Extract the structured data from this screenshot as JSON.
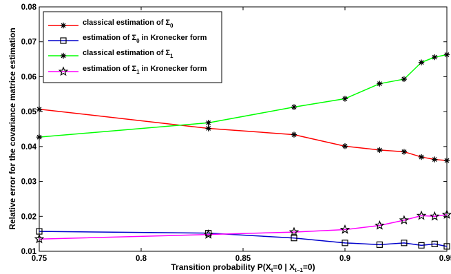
{
  "chart_data": {
    "type": "line",
    "title": "",
    "xlabel": "Transition probability P(X_t=0 | X_{t-1}=0)",
    "xlabel_parts": {
      "prefix": "Transition probability P(X",
      "sub1": "t",
      "mid": "=0 | X",
      "sub2": "t−1",
      "suffix": "=0)"
    },
    "ylabel": "Relative error for the covariance matrice estimation",
    "xlim": [
      0.75,
      0.95
    ],
    "ylim": [
      0.01,
      0.08
    ],
    "x_ticks": [
      "0.75",
      "0.8",
      "0.85",
      "0.9",
      "0.95"
    ],
    "y_ticks": [
      "0.01",
      "0.02",
      "0.03",
      "0.04",
      "0.05",
      "0.06",
      "0.07",
      "0.08"
    ],
    "grid": false,
    "legend_position": "top-left",
    "x": [
      0.75,
      0.833,
      0.875,
      0.9,
      0.917,
      0.929,
      0.9375,
      0.944,
      0.95
    ],
    "series": [
      {
        "name": "classical estimation of Σ₀",
        "legend_main": "classical estimation of Σ",
        "legend_sub": "0",
        "legend_after": "",
        "color": "#ff0000",
        "marker": "asterisk",
        "values": [
          0.0507,
          0.0452,
          0.0434,
          0.0401,
          0.039,
          0.0385,
          0.037,
          0.0363,
          0.036
        ]
      },
      {
        "name": "estimation of Σ₀ in Kronecker form",
        "legend_main": "estimation of Σ",
        "legend_sub": "0",
        "legend_after": " in Kronecker form",
        "color": "#0000cc",
        "marker": "square",
        "values": [
          0.0157,
          0.0152,
          0.0138,
          0.0124,
          0.0119,
          0.0124,
          0.0117,
          0.0121,
          0.0114
        ]
      },
      {
        "name": "classical estimation of Σ₁",
        "legend_main": "classical estimation of Σ",
        "legend_sub": "1",
        "legend_after": "",
        "color": "#00ff00",
        "marker": "asterisk",
        "values": [
          0.0427,
          0.0468,
          0.0513,
          0.0537,
          0.058,
          0.0593,
          0.0641,
          0.0656,
          0.0663
        ]
      },
      {
        "name": "estimation of Σ₁ in Kronecker form",
        "legend_main": "estimation of Σ",
        "legend_sub": "1",
        "legend_after": " in Kronecker form",
        "color": "#ff00ff",
        "marker": "star",
        "values": [
          0.0135,
          0.0148,
          0.0155,
          0.0162,
          0.0174,
          0.0189,
          0.0202,
          0.02,
          0.0205
        ]
      }
    ]
  }
}
